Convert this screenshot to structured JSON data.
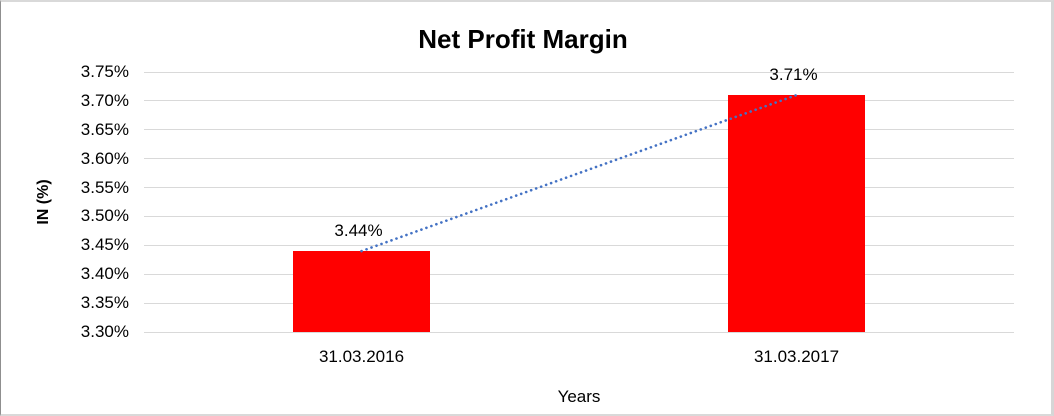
{
  "chart_data": {
    "type": "bar",
    "title": "Net Profit Margin",
    "xlabel": "Years",
    "ylabel": "IN (%)",
    "categories": [
      "31.03.2016",
      "31.03.2017"
    ],
    "values": [
      3.44,
      3.71
    ],
    "data_labels": [
      "3.44%",
      "3.71%"
    ],
    "y_ticks": [
      "3.75%",
      "3.70%",
      "3.65%",
      "3.60%",
      "3.55%",
      "3.50%",
      "3.45%",
      "3.40%",
      "3.35%",
      "3.30%"
    ],
    "ylim": [
      3.3,
      3.75
    ],
    "tick_step": 0.05,
    "grid": "horizontal-only",
    "legend_position": "none",
    "bar_color": "#ff0000",
    "trendline_color": "#4472c4",
    "gridline_color": "#d9d9d9",
    "trendline": {
      "style": "dotted",
      "from_value": 3.44,
      "to_value": 3.71
    }
  }
}
